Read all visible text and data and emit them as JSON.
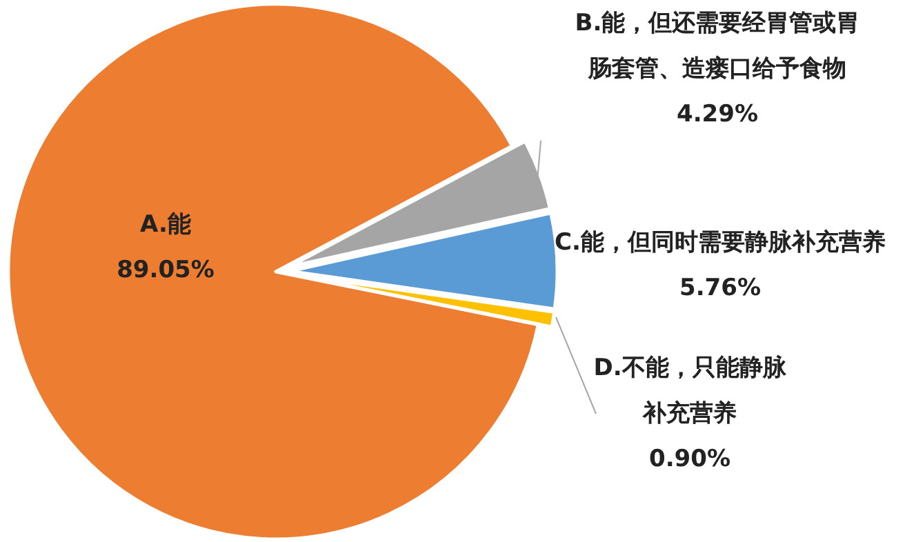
{
  "chart_data": {
    "type": "pie",
    "categories": [
      "A.能",
      "B.能，但还需要经胃管或胃肠套管、造瘘口给予食物",
      "C.能，但同时需要静脉补充营养",
      "D.不能，只能静脉补充营养"
    ],
    "values": [
      89.05,
      4.29,
      5.76,
      0.9
    ],
    "colors": [
      "#ed7d31",
      "#a5a5a5",
      "#5b9bd5",
      "#ffc000"
    ],
    "value_labels": [
      "89.05%",
      "4.29%",
      "5.76%",
      "0.90%"
    ]
  }
}
